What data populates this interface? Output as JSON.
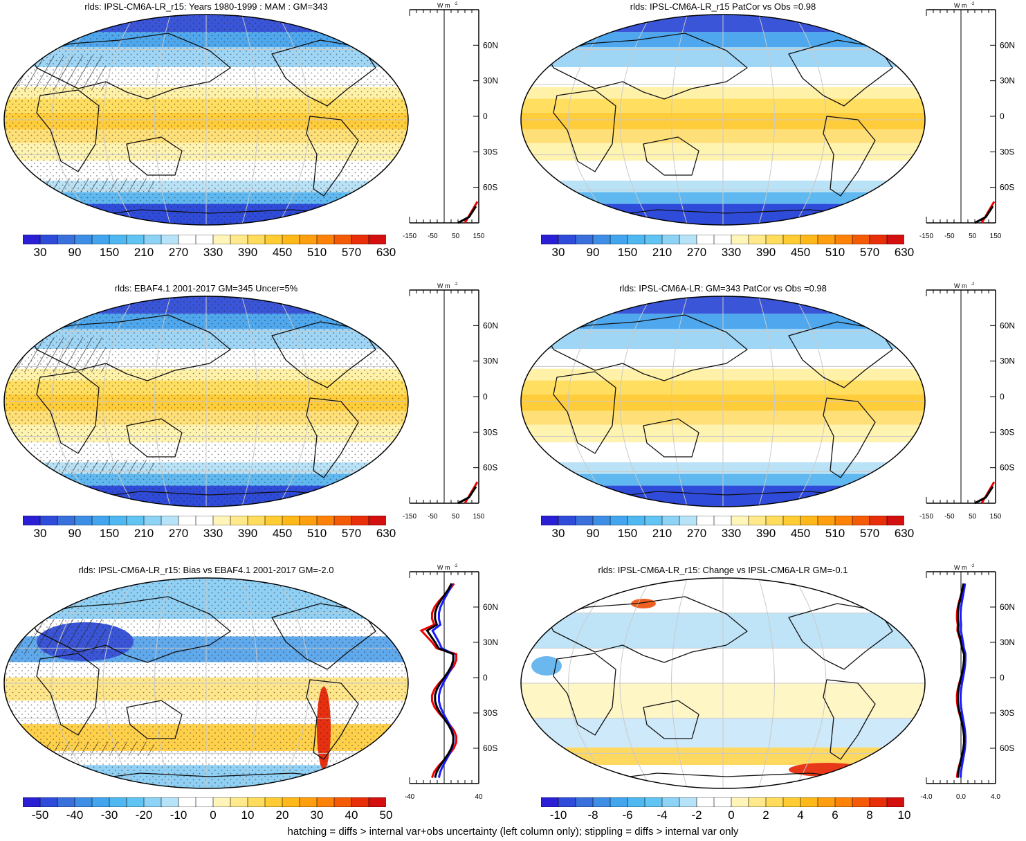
{
  "footer": "hatching = diffs > internal var+obs uncertainty (left column only); stippling = diffs > internal var only",
  "colors": {
    "abs_scale": [
      "#2b1fd6",
      "#2f4bd9",
      "#3a70dc",
      "#3f8ee6",
      "#43a5ee",
      "#4fb8f0",
      "#62c4f2",
      "#8dd3f5",
      "#b7e3f8",
      "#ffffff",
      "#ffffff",
      "#fff5b8",
      "#ffe98a",
      "#ffdc5c",
      "#ffcc33",
      "#ffb81a",
      "#ff9f0f",
      "#ff8208",
      "#f55a06",
      "#e82f0a",
      "#d40f0f"
    ],
    "diff_scale": [
      "#2b1fd6",
      "#2f4bd9",
      "#3a70dc",
      "#3f8ee6",
      "#43a5ee",
      "#4fb8f0",
      "#62c4f2",
      "#8dd3f5",
      "#b7e3f8",
      "#ffffff",
      "#ffffff",
      "#fff5b8",
      "#ffe98a",
      "#ffdc5c",
      "#ffcc33",
      "#ffb81a",
      "#ff9f0f",
      "#ff8208",
      "#f55a06",
      "#e82f0a",
      "#d40f0f"
    ]
  },
  "panels": [
    {
      "id": "p1",
      "title": "rlds: IPSL-CM6A-LR_r15: Years 1980-1999 : MAM : GM=343",
      "colorbar_labels": [
        "30",
        "90",
        "150",
        "210",
        "270",
        "330",
        "390",
        "450",
        "510",
        "570",
        "630"
      ],
      "side_xticks": [
        "-150",
        "-50",
        "50",
        "150"
      ],
      "side_unit": "W m",
      "lat_labels": [
        "60N",
        "30N",
        "0",
        "30S",
        "60S"
      ],
      "hatching": true,
      "stippling": true,
      "profile_style": "abs"
    },
    {
      "id": "p2",
      "title": "rlds: IPSL-CM6A-LR_r15 PatCor vs Obs =0.98",
      "colorbar_labels": [
        "30",
        "90",
        "150",
        "210",
        "270",
        "330",
        "390",
        "450",
        "510",
        "570",
        "630"
      ],
      "side_xticks": [
        "-150",
        "-50",
        "50",
        "150"
      ],
      "side_unit": "W m",
      "lat_labels": [
        "60N",
        "30N",
        "0",
        "30S",
        "60S"
      ],
      "hatching": false,
      "stippling": false,
      "profile_style": "abs"
    },
    {
      "id": "p3",
      "title": "rlds: EBAF4.1 2001-2017 GM=345 Uncer=5%",
      "colorbar_labels": [
        "30",
        "90",
        "150",
        "210",
        "270",
        "330",
        "390",
        "450",
        "510",
        "570",
        "630"
      ],
      "side_xticks": [
        "-150",
        "-50",
        "50",
        "150"
      ],
      "side_unit": "W m",
      "lat_labels": [
        "60N",
        "30N",
        "0",
        "30S",
        "60S"
      ],
      "hatching": true,
      "stippling": true,
      "profile_style": "abs"
    },
    {
      "id": "p4",
      "title": "rlds: IPSL-CM6A-LR: GM=343 PatCor vs Obs =0.98",
      "colorbar_labels": [
        "30",
        "90",
        "150",
        "210",
        "270",
        "330",
        "390",
        "450",
        "510",
        "570",
        "630"
      ],
      "side_xticks": [
        "-150",
        "-50",
        "50",
        "150"
      ],
      "side_unit": "W m",
      "lat_labels": [
        "60N",
        "30N",
        "0",
        "30S",
        "60S"
      ],
      "hatching": false,
      "stippling": false,
      "profile_style": "abs"
    },
    {
      "id": "p5",
      "title": "rlds: IPSL-CM6A-LR_r15: Bias vs EBAF4.1 2001-2017 GM=-2.0",
      "colorbar_labels": [
        "-50",
        "-40",
        "-30",
        "-20",
        "-10",
        "0",
        "10",
        "20",
        "30",
        "40",
        "50"
      ],
      "side_xticks": [
        "-40",
        "40"
      ],
      "side_unit": "W m",
      "lat_labels": [
        "60N",
        "30N",
        "0",
        "30S",
        "60S"
      ],
      "hatching": true,
      "stippling": true,
      "profile_style": "bias"
    },
    {
      "id": "p6",
      "title": "rlds: IPSL-CM6A-LR_r15: Change vs IPSL-CM6A-LR GM=-0.1",
      "colorbar_labels": [
        "-10",
        "-8",
        "-6",
        "-4",
        "-2",
        "0",
        "2",
        "4",
        "6",
        "8",
        "10"
      ],
      "side_xticks": [
        "-4.0",
        "0.0",
        "4.0"
      ],
      "side_unit": "W m",
      "lat_labels": [
        "60N",
        "30N",
        "0",
        "30S",
        "60S"
      ],
      "hatching": false,
      "stippling": false,
      "profile_style": "change"
    }
  ]
}
